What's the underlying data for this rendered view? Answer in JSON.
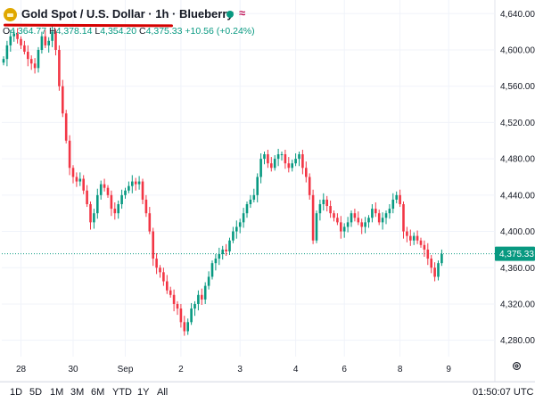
{
  "header": {
    "title": "Gold Spot / U.S. Dollar · 1h · Blueberry",
    "wave_symbol": "≈",
    "ohlc": {
      "o_label": "O",
      "o_value": "4,364.77",
      "h_label": "H",
      "h_value": "4,378.14",
      "l_label": "L",
      "l_value": "4,354.20",
      "c_label": "C",
      "c_value": "4,375.33",
      "change": "+10.56 (+0.24%)"
    }
  },
  "colors": {
    "up": "#089981",
    "down": "#f23645",
    "logo": "#e0a800",
    "underline": "#d50000"
  },
  "chart_data": {
    "type": "candlestick",
    "yticks": [
      "4,640.00",
      "4,600.00",
      "4,560.00",
      "4,520.00",
      "4,480.00",
      "4,440.00",
      "4,400.00",
      "4,360.00",
      "4,320.00",
      "4,280.00"
    ],
    "ytick_values": [
      4640,
      4600,
      4560,
      4520,
      4480,
      4440,
      4400,
      4360,
      4320,
      4280
    ],
    "ylim": [
      4262,
      4655
    ],
    "xticks": [
      "28",
      "30",
      "Sep",
      "2",
      "3",
      "4",
      "6",
      "8",
      "9"
    ],
    "xtick_index": [
      5,
      20,
      35,
      51,
      68,
      84,
      98,
      114,
      128
    ],
    "last_price": 4375.33,
    "last_price_label": "4,375.33",
    "closes": [
      4590,
      4605,
      4615,
      4618,
      4612,
      4605,
      4598,
      4590,
      4585,
      4580,
      4600,
      4615,
      4605,
      4610,
      4620,
      4600,
      4560,
      4530,
      4500,
      4470,
      4460,
      4455,
      4458,
      4445,
      4430,
      4410,
      4420,
      4440,
      4452,
      4448,
      4440,
      4425,
      4420,
      4430,
      4440,
      4445,
      4450,
      4455,
      4452,
      4455,
      4435,
      4420,
      4400,
      4370,
      4360,
      4355,
      4345,
      4335,
      4330,
      4320,
      4315,
      4300,
      4290,
      4300,
      4315,
      4320,
      4330,
      4325,
      4340,
      4350,
      4365,
      4370,
      4375,
      4380,
      4378,
      4390,
      4400,
      4405,
      4410,
      4420,
      4430,
      4435,
      4440,
      4460,
      4480,
      4485,
      4475,
      4470,
      4480,
      4485,
      4485,
      4475,
      4470,
      4475,
      4480,
      4485,
      4470,
      4460,
      4440,
      4390,
      4420,
      4430,
      4435,
      4428,
      4420,
      4415,
      4410,
      4400,
      4405,
      4410,
      4420,
      4415,
      4410,
      4405,
      4410,
      4415,
      4425,
      4420,
      4410,
      4415,
      4420,
      4425,
      4435,
      4440,
      4430,
      4400,
      4395,
      4390,
      4395,
      4390,
      4385,
      4380,
      4370,
      4360,
      4350,
      4365,
      4375
    ]
  },
  "range_buttons": [
    "1D",
    "5D",
    "1M",
    "3M",
    "6M",
    "YTD",
    "1Y",
    "All"
  ],
  "clock": "01:50:07 UTC"
}
